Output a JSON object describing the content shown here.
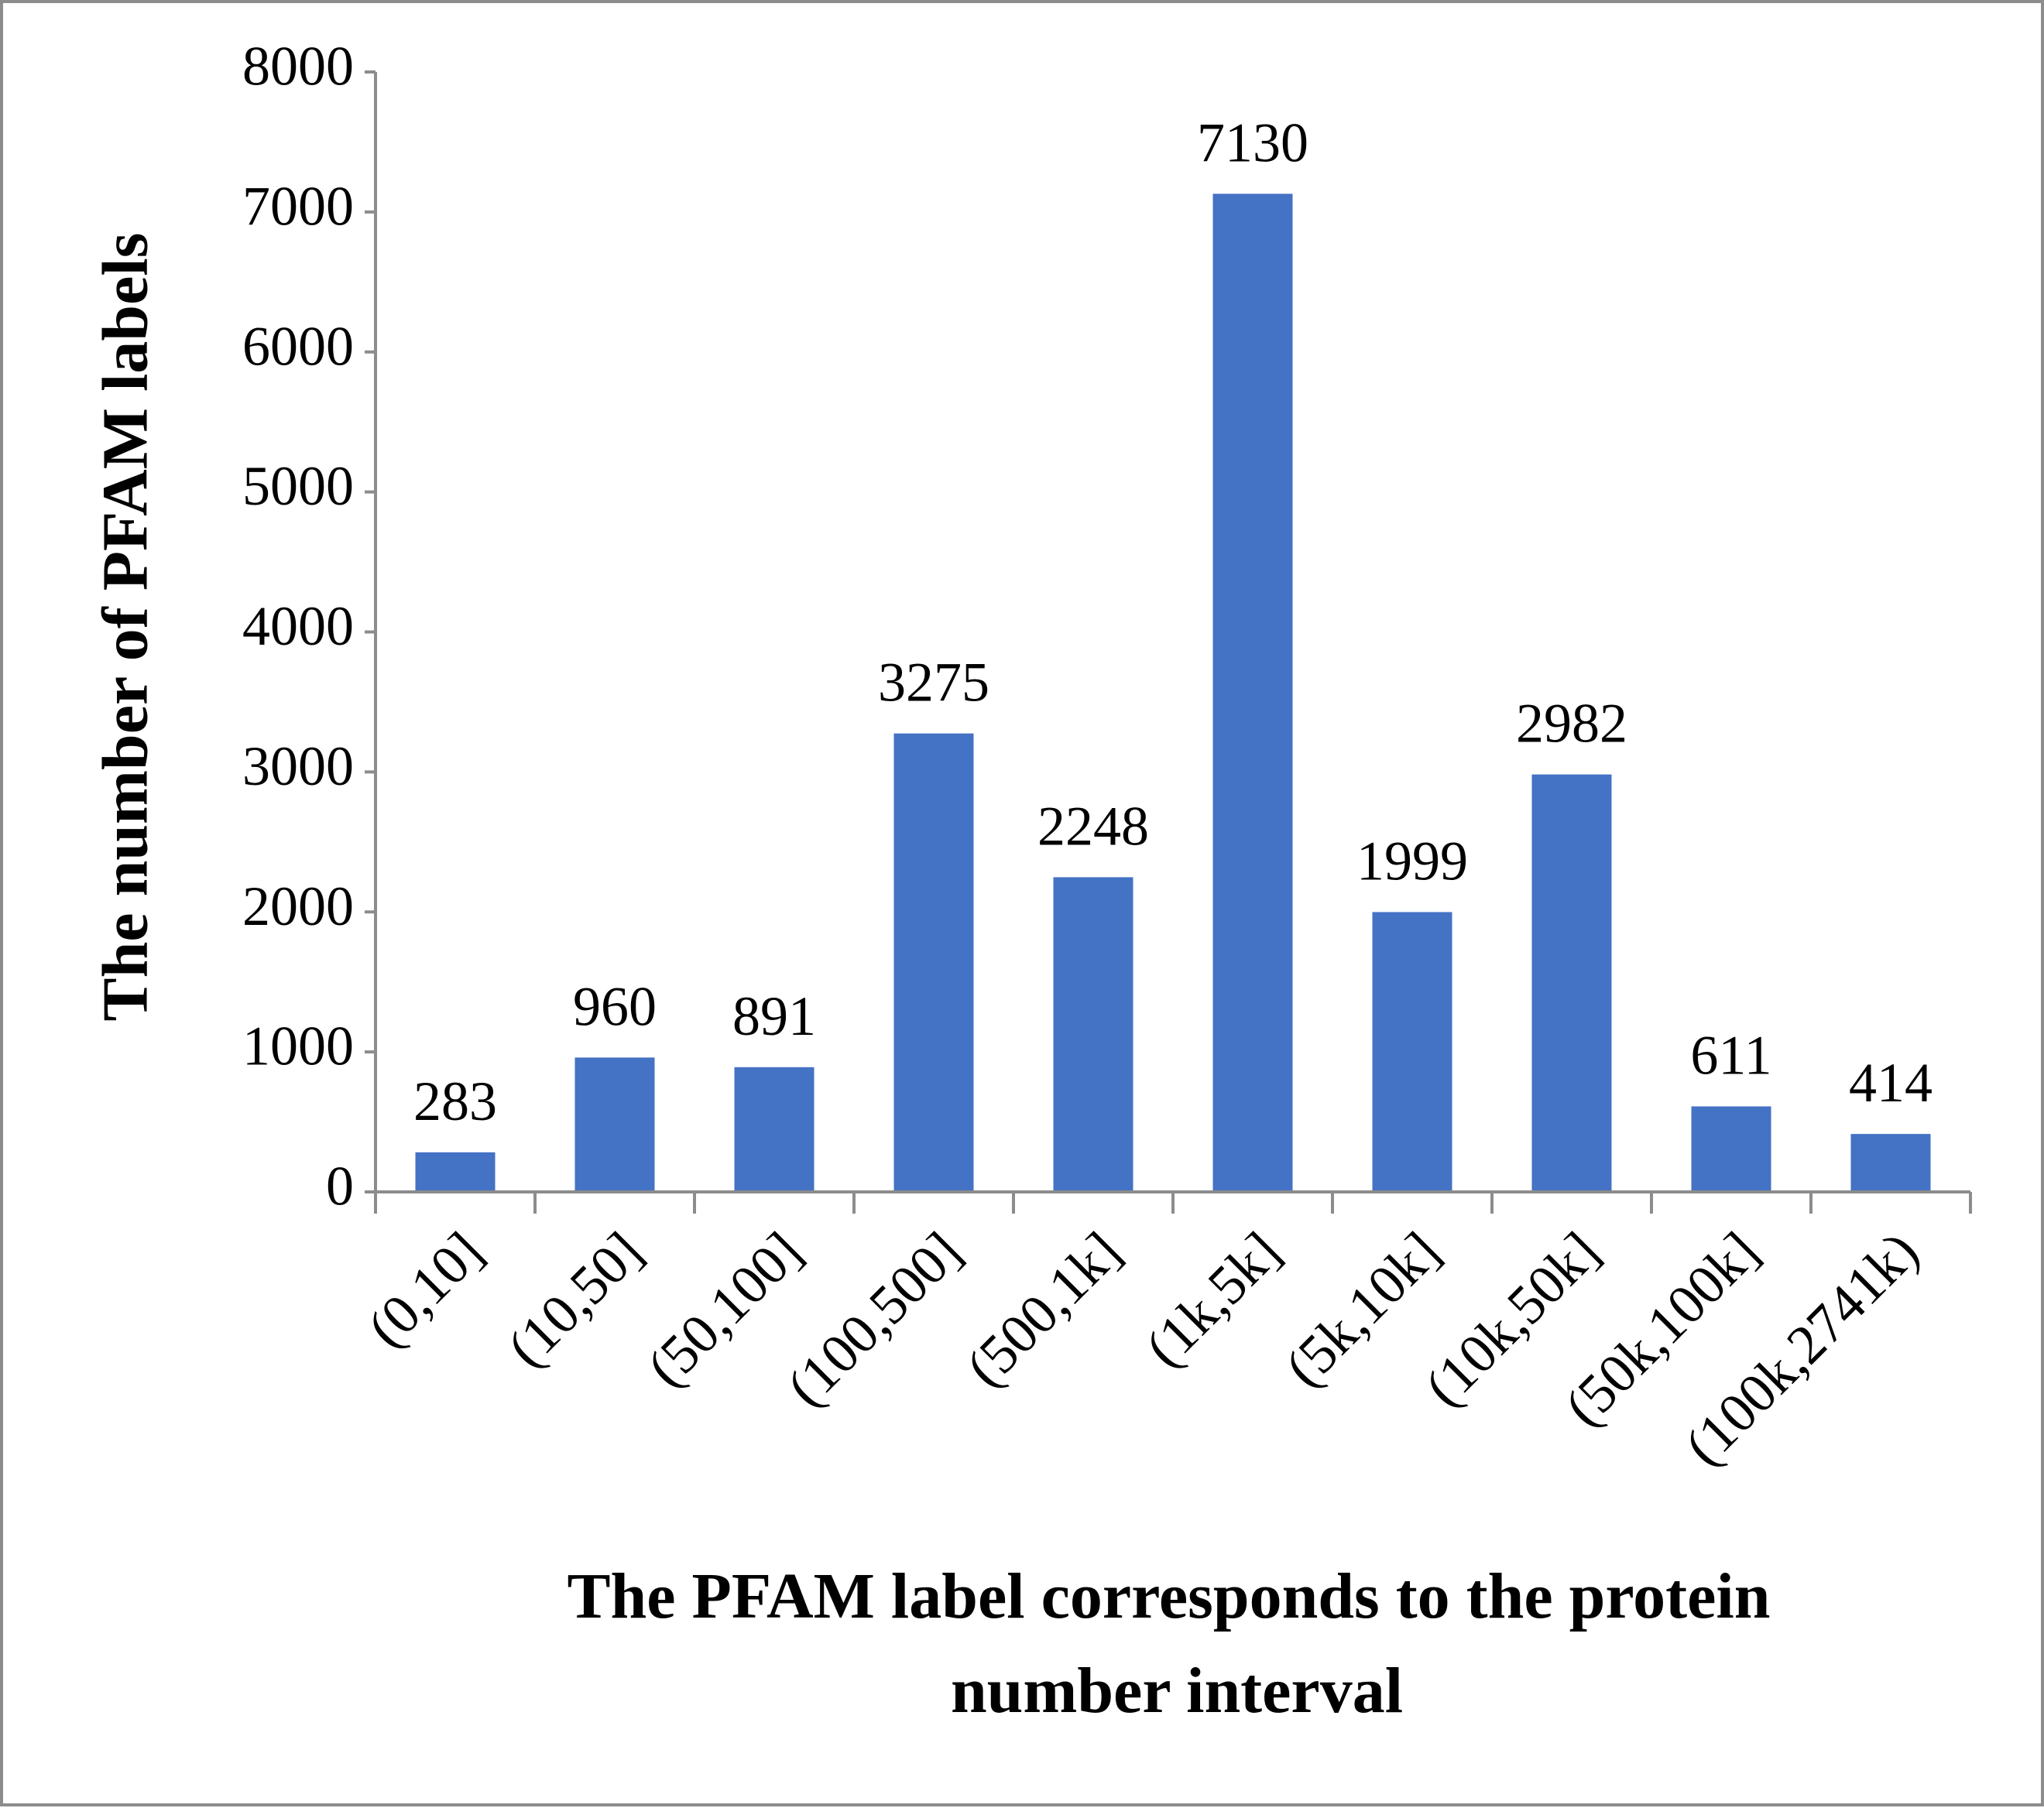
{
  "chart_data": {
    "type": "bar",
    "categories": [
      "(0,10]",
      "(10,50]",
      "(50,100]",
      "(100,500]",
      "(500,1k]",
      "(1k,5k]",
      "(5k,10k]",
      "(10k,50k]",
      "(50k,100k]",
      "(100k,2741k)"
    ],
    "values": [
      283,
      960,
      891,
      3275,
      2248,
      7130,
      1999,
      2982,
      611,
      414
    ],
    "data_labels": [
      "283",
      "960",
      "891",
      "3275",
      "2248",
      "7130",
      "1999",
      "2982",
      "611",
      "414"
    ],
    "title": "",
    "xlabel_lines": [
      "The PFAM label corresponds to the protein",
      "number interval"
    ],
    "ylabel": "The number of PFAM labels",
    "ylim": [
      0,
      8000
    ],
    "yticks": [
      0,
      1000,
      2000,
      3000,
      4000,
      5000,
      6000,
      7000,
      8000
    ],
    "ytick_labels": [
      "0",
      "1000",
      "2000",
      "3000",
      "4000",
      "5000",
      "6000",
      "7000",
      "8000"
    ],
    "grid": false,
    "legend": "none",
    "bar_color": "#4472c4"
  }
}
